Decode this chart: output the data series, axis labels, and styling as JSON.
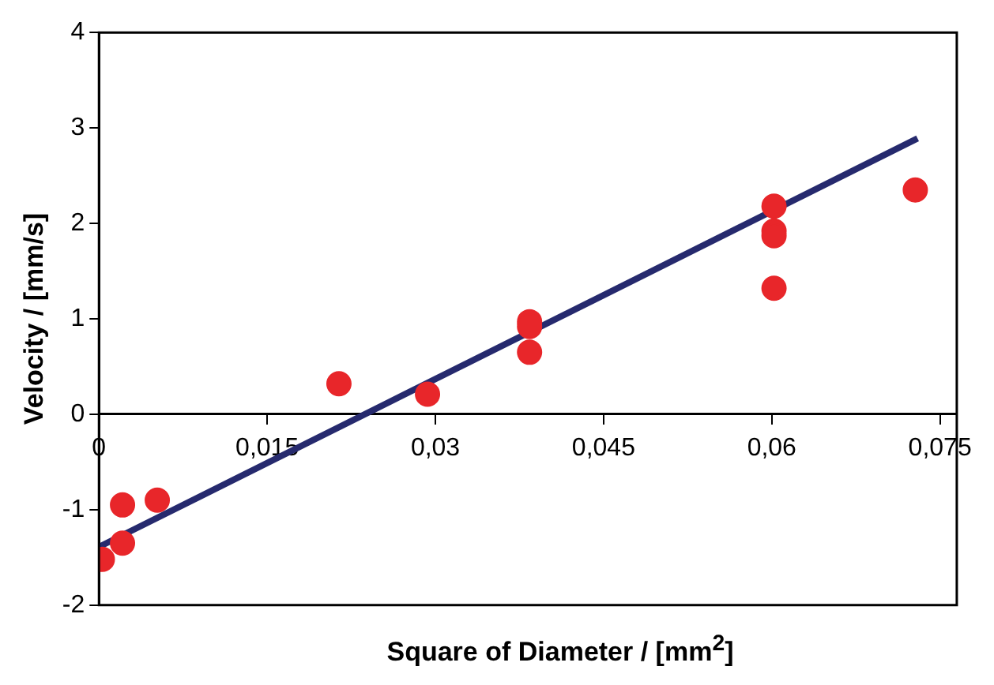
{
  "chart_data": {
    "type": "scatter",
    "xlabel": "Square of Diameter / [mm$^{2}$]",
    "ylabel": "Velocity / [mm/s]",
    "xlim": [
      0,
      0.0765
    ],
    "ylim": [
      -2,
      4
    ],
    "xticks": [
      {
        "value": 0,
        "label": "0"
      },
      {
        "value": 0.015,
        "label": "0,015"
      },
      {
        "value": 0.03,
        "label": "0,03"
      },
      {
        "value": 0.045,
        "label": "0,045"
      },
      {
        "value": 0.06,
        "label": "0,06"
      },
      {
        "value": 0.075,
        "label": "0,075"
      }
    ],
    "yticks": [
      -2,
      -1,
      0,
      1,
      2,
      3,
      4
    ],
    "grid": false,
    "legend": false,
    "series": [
      {
        "color": "#e8262a",
        "marker": "circle",
        "x": [
          0.0003,
          0.0021,
          0.0021,
          0.0052,
          0.0214,
          0.0293,
          0.0384,
          0.0384,
          0.0384,
          0.0602,
          0.0602,
          0.0602,
          0.0602,
          0.0728
        ],
        "values": [
          -1.52,
          -0.95,
          -1.35,
          -0.9,
          0.32,
          0.21,
          0.97,
          0.92,
          0.65,
          2.18,
          1.92,
          1.87,
          1.32,
          2.35
        ]
      },
      {
        "type": "line",
        "color": "#262a6e",
        "marker": "none",
        "line_style": "solid",
        "x": [
          0,
          0.073
        ],
        "values": [
          -1.39,
          2.89
        ]
      }
    ]
  }
}
